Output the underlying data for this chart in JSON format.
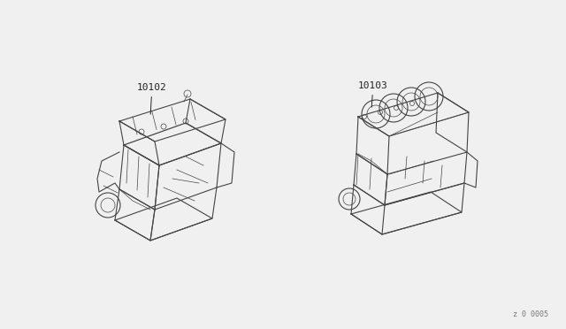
{
  "background_color": "#f0f0f0",
  "label_10102": "10102",
  "label_10103": "10103",
  "watermark": "z 0 0005",
  "line_color": "#444444",
  "text_color": "#222222",
  "label_fontsize": 8,
  "watermark_fontsize": 6
}
